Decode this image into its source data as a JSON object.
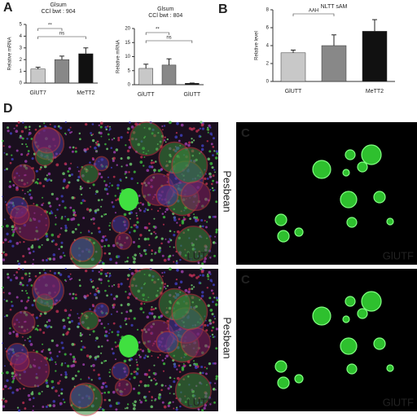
{
  "panels": {
    "a": "A",
    "b": "B",
    "d": "D"
  },
  "chart_data": [
    {
      "type": "bar",
      "title": "Glsum",
      "subtitle": "CCl  bwt : 904",
      "y_label": "Relative mRNA",
      "categories": [
        "GlUT7",
        null,
        "MeTT2"
      ],
      "values": [
        1.2,
        2.0,
        2.5
      ],
      "errors": [
        0.15,
        0.3,
        0.5
      ],
      "colors": [
        "#c8c8c8",
        "#888888",
        "#111111"
      ],
      "ylim": [
        0,
        5
      ],
      "yticks": [
        0,
        1,
        2,
        3,
        4,
        5
      ],
      "annotations": [
        "**",
        "ns"
      ]
    },
    {
      "type": "bar",
      "title": "Glsum",
      "subtitle": "CCl  bwt : 804",
      "y_label": "Relative mRNA",
      "categories": [
        "GlUTT",
        null,
        "GlUTT"
      ],
      "values": [
        5.8,
        7.0,
        0.5
      ],
      "errors": [
        1.5,
        2.2,
        0.1
      ],
      "colors": [
        "#c8c8c8",
        "#888888",
        "#111111"
      ],
      "ylim": [
        0,
        20
      ],
      "yticks": [
        0,
        5,
        10,
        15,
        20
      ],
      "annotations": [
        "**",
        "ns"
      ]
    },
    {
      "type": "bar",
      "title": "NLTT sAM",
      "y_label": "Relative level",
      "categories": [
        "GlUTT",
        null,
        "MeTT2"
      ],
      "values": [
        3.2,
        4.0,
        5.6
      ],
      "errors": [
        0.3,
        1.2,
        1.3
      ],
      "colors": [
        "#c8c8c8",
        "#888888",
        "#111111"
      ],
      "ylim": [
        0,
        8
      ],
      "yticks": [
        0,
        2,
        4,
        6,
        8
      ],
      "annotations": [
        "AAH"
      ]
    }
  ],
  "images": {
    "left": [
      "LUTF",
      "LUTF"
    ],
    "right": [
      "GlUTF",
      "GlUTF"
    ],
    "marks": [
      "C",
      "C"
    ],
    "side": [
      "Pesbean",
      "Pesbean"
    ]
  }
}
